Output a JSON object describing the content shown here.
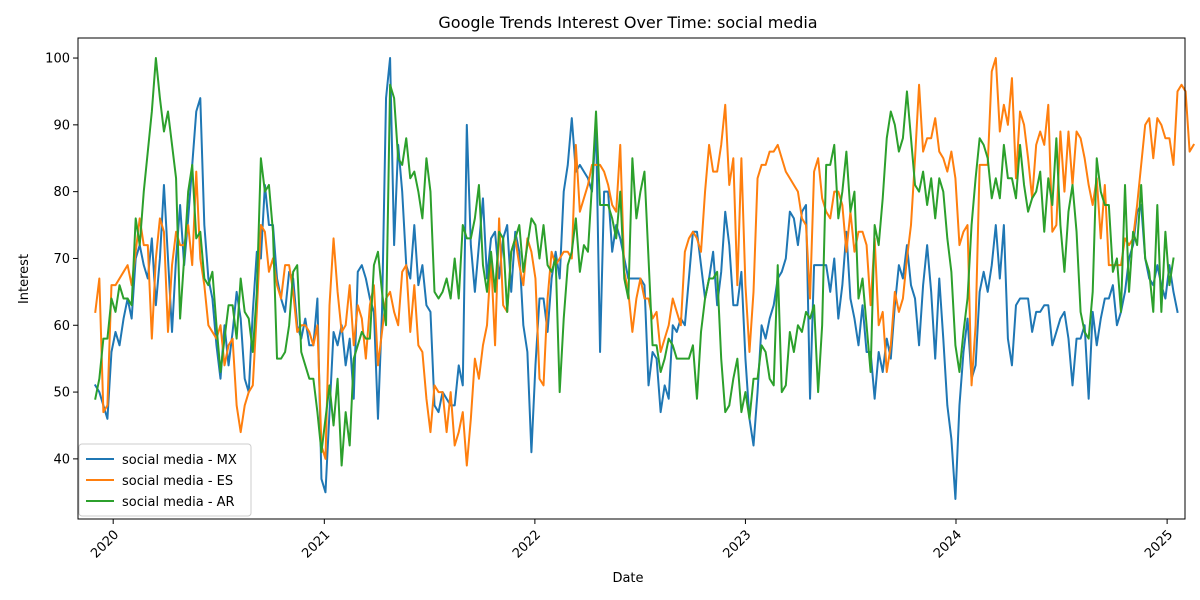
{
  "chart_data": {
    "type": "line",
    "title": "Google Trends Interest Over Time: social media",
    "xlabel": "Date",
    "ylabel": "Interest",
    "xlim": [
      "2019-11-01",
      "2025-02-01"
    ],
    "ylim": [
      31,
      103
    ],
    "x_ticks": [
      "2020",
      "2021",
      "2022",
      "2023",
      "2024",
      "2025"
    ],
    "y_ticks": [
      40,
      50,
      60,
      70,
      80,
      90,
      100
    ],
    "grid": false,
    "legend_position": "lower-left",
    "start_date": "2019-12-01",
    "interval_days": 7,
    "series": [
      {
        "name": "social media - MX",
        "color": "#1f77b4",
        "values": [
          51,
          50,
          48,
          46,
          56,
          59,
          57,
          61,
          64,
          61,
          70,
          72,
          69,
          67,
          73,
          63,
          70,
          81,
          70,
          59,
          70,
          78,
          69,
          76,
          84,
          92,
          94,
          75,
          67,
          64,
          57,
          52,
          60,
          54,
          59,
          65,
          61,
          52,
          50,
          62,
          71,
          70,
          81,
          75,
          75,
          67,
          64,
          62,
          68,
          67,
          60,
          58,
          61,
          57,
          57,
          64,
          37,
          35,
          47,
          59,
          57,
          60,
          54,
          58,
          49,
          68,
          69,
          67,
          64,
          62,
          46,
          62,
          94,
          100,
          72,
          87,
          80,
          69,
          67,
          75,
          66,
          69,
          63,
          62,
          48,
          47,
          50,
          49,
          48,
          48,
          54,
          51,
          90,
          72,
          65,
          72,
          79,
          67,
          73,
          74,
          67,
          73,
          75,
          65,
          74,
          71,
          60,
          56,
          41,
          54,
          64,
          64,
          59,
          67,
          71,
          67,
          80,
          84,
          91,
          83,
          84,
          83,
          82,
          80,
          90,
          56,
          80,
          80,
          71,
          75,
          73,
          70,
          67,
          67,
          67,
          67,
          66,
          51,
          56,
          55,
          47,
          51,
          49,
          60,
          59,
          61,
          60,
          67,
          74,
          74,
          69,
          64,
          67,
          71,
          63,
          68,
          77,
          72,
          63,
          63,
          68,
          55,
          46,
          42,
          50,
          60,
          58,
          61,
          63,
          67,
          68,
          70,
          77,
          76,
          72,
          77,
          78,
          49,
          69,
          69,
          69,
          69,
          65,
          70,
          61,
          66,
          74,
          64,
          61,
          57,
          63,
          56,
          56,
          49,
          56,
          53,
          58,
          55,
          63,
          69,
          67,
          72,
          66,
          64,
          57,
          66,
          72,
          65,
          55,
          67,
          58,
          48,
          43,
          34,
          48,
          56,
          61,
          52,
          54,
          65,
          68,
          65,
          69,
          75,
          67,
          75,
          58,
          54,
          63,
          64,
          64,
          64,
          59,
          62,
          62,
          63,
          63,
          57,
          59,
          61,
          62,
          58,
          51,
          58,
          58,
          60,
          49,
          62,
          57,
          61,
          64,
          64,
          66,
          60,
          62,
          65,
          70,
          72,
          77,
          78,
          70,
          67,
          66,
          69,
          66,
          64,
          69,
          65,
          62
        ]
      },
      {
        "name": "social media - ES",
        "color": "#ff7f0e",
        "values": [
          62,
          67,
          47,
          48,
          66,
          66,
          67,
          68,
          69,
          66,
          71,
          76,
          72,
          72,
          58,
          70,
          76,
          74,
          59,
          69,
          74,
          72,
          72,
          75,
          69,
          83,
          70,
          66,
          60,
          59,
          58,
          60,
          54,
          57,
          58,
          48,
          44,
          48,
          50,
          51,
          62,
          75,
          74,
          68,
          70,
          66,
          64,
          69,
          69,
          65,
          59,
          60,
          60,
          59,
          57,
          60,
          42,
          40,
          63,
          73,
          65,
          59,
          60,
          66,
          57,
          63,
          61,
          55,
          63,
          66,
          54,
          59,
          64,
          65,
          62,
          60,
          68,
          69,
          59,
          66,
          57,
          56,
          49,
          44,
          51,
          50,
          50,
          44,
          50,
          42,
          44,
          47,
          39,
          46,
          55,
          52,
          57,
          60,
          70,
          57,
          76,
          63,
          62,
          71,
          73,
          69,
          66,
          73,
          71,
          67,
          52,
          51,
          64,
          71,
          69,
          70,
          71,
          71,
          70,
          87,
          77,
          79,
          81,
          84,
          84,
          84,
          83,
          81,
          78,
          77,
          87,
          68,
          65,
          59,
          64,
          67,
          64,
          64,
          61,
          62,
          56,
          58,
          60,
          64,
          62,
          60,
          71,
          73,
          74,
          73,
          71,
          80,
          87,
          83,
          83,
          87,
          93,
          81,
          85,
          66,
          85,
          66,
          56,
          65,
          82,
          84,
          84,
          86,
          86,
          87,
          85,
          83,
          82,
          81,
          80,
          76,
          75,
          64,
          83,
          85,
          79,
          77,
          76,
          80,
          80,
          78,
          71,
          77,
          71,
          74,
          74,
          72,
          63,
          73,
          60,
          62,
          53,
          57,
          65,
          62,
          64,
          70,
          75,
          85,
          96,
          86,
          88,
          88,
          91,
          86,
          85,
          83,
          86,
          82,
          72,
          74,
          75,
          51,
          60,
          84,
          84,
          84,
          98,
          100,
          89,
          93,
          90,
          97,
          82,
          92,
          90,
          85,
          79,
          87,
          89,
          87,
          93,
          74,
          75,
          89,
          80,
          89,
          81,
          89,
          88,
          85,
          81,
          78,
          82,
          73,
          81,
          69,
          69,
          69,
          69,
          73,
          72,
          73,
          78,
          84,
          90,
          91,
          85,
          91,
          90,
          88,
          88,
          84,
          95,
          96,
          95,
          86,
          87
        ]
      },
      {
        "name": "social media - AR",
        "color": "#2ca02c",
        "values": [
          49,
          52,
          58,
          58,
          64,
          62,
          66,
          64,
          64,
          63,
          76,
          72,
          80,
          86,
          92,
          100,
          94,
          89,
          92,
          87,
          82,
          61,
          70,
          80,
          84,
          73,
          74,
          67,
          66,
          68,
          60,
          53,
          58,
          63,
          63,
          58,
          67,
          62,
          61,
          56,
          65,
          85,
          80,
          81,
          74,
          55,
          55,
          56,
          60,
          68,
          69,
          56,
          54,
          52,
          52,
          47,
          41,
          46,
          51,
          45,
          52,
          39,
          47,
          42,
          55,
          57,
          59,
          58,
          58,
          69,
          71,
          65,
          60,
          96,
          94,
          85,
          84,
          88,
          82,
          83,
          80,
          76,
          85,
          80,
          65,
          64,
          65,
          67,
          64,
          70,
          64,
          75,
          73,
          73,
          76,
          81,
          69,
          65,
          71,
          65,
          74,
          73,
          62,
          71,
          73,
          75,
          68,
          72,
          76,
          75,
          70,
          75,
          69,
          68,
          70,
          50,
          61,
          69,
          71,
          76,
          68,
          72,
          71,
          81,
          92,
          78,
          78,
          78,
          76,
          73,
          80,
          67,
          64,
          85,
          76,
          80,
          83,
          70,
          57,
          57,
          53,
          55,
          58,
          57,
          55,
          55,
          55,
          55,
          57,
          49,
          59,
          64,
          67,
          67,
          68,
          55,
          47,
          48,
          52,
          55,
          47,
          50,
          46,
          52,
          52,
          57,
          56,
          52,
          51,
          69,
          50,
          51,
          59,
          56,
          60,
          59,
          62,
          61,
          63,
          50,
          60,
          84,
          84,
          87,
          76,
          80,
          86,
          77,
          80,
          64,
          67,
          60,
          53,
          75,
          72,
          79,
          88,
          92,
          90,
          86,
          88,
          95,
          88,
          81,
          80,
          83,
          78,
          82,
          76,
          82,
          80,
          73,
          68,
          57,
          53,
          59,
          64,
          75,
          82,
          88,
          87,
          85,
          79,
          82,
          79,
          87,
          82,
          82,
          79,
          87,
          81,
          77,
          79,
          80,
          83,
          74,
          82,
          78,
          88,
          75,
          68,
          77,
          81,
          74,
          62,
          59,
          58,
          65,
          85,
          80,
          78,
          78,
          68,
          70,
          62,
          81,
          65,
          74,
          72,
          81,
          70,
          68,
          62,
          78,
          62,
          74,
          66,
          70
        ]
      }
    ]
  }
}
